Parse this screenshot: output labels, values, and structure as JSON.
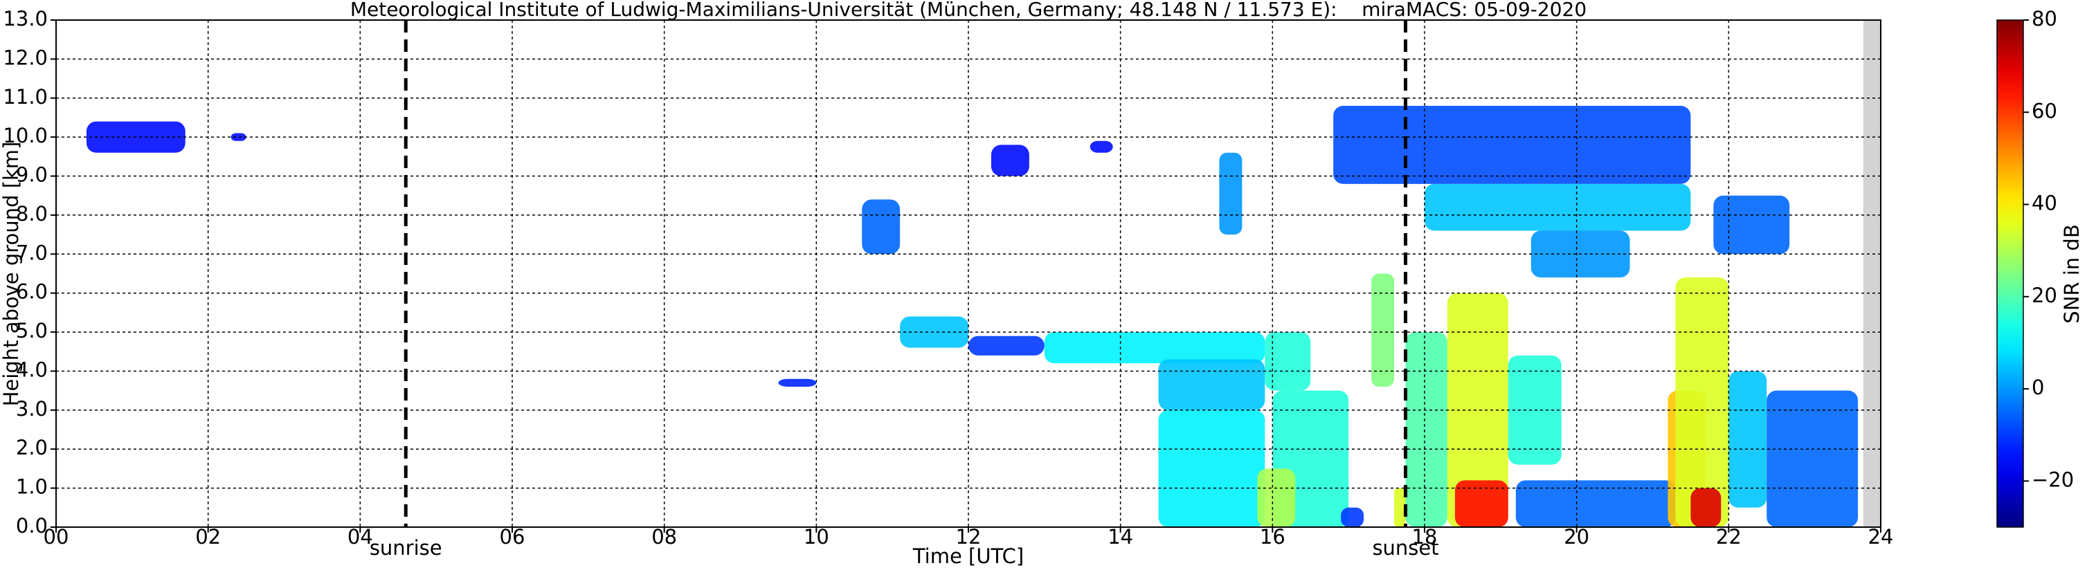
{
  "chart_data": {
    "type": "heatmap",
    "title": "Meteorological Institute of Ludwig-Maximilians-Universität (München, Germany; 48.148 N / 11.573 E):    miraMACS: 05-09-2020",
    "x_label": "Time [UTC]",
    "y_label": "Height above ground [km]",
    "colorbar_label": "SNR in dB",
    "xlim": [
      0,
      24
    ],
    "ylim": [
      0,
      13
    ],
    "clim": [
      -30,
      80
    ],
    "xticks": [
      {
        "value": 0,
        "label": "00"
      },
      {
        "value": 2,
        "label": "02"
      },
      {
        "value": 4,
        "label": "04"
      },
      {
        "value": 6,
        "label": "06"
      },
      {
        "value": 8,
        "label": "08"
      },
      {
        "value": 10,
        "label": "10"
      },
      {
        "value": 12,
        "label": "12"
      },
      {
        "value": 14,
        "label": "14"
      },
      {
        "value": 16,
        "label": "16"
      },
      {
        "value": 18,
        "label": "18"
      },
      {
        "value": 20,
        "label": "20"
      },
      {
        "value": 22,
        "label": "22"
      },
      {
        "value": 24,
        "label": "24"
      }
    ],
    "yticks": [
      {
        "value": 0,
        "label": "0.0"
      },
      {
        "value": 1,
        "label": "1.0"
      },
      {
        "value": 2,
        "label": "2.0"
      },
      {
        "value": 3,
        "label": "3.0"
      },
      {
        "value": 4,
        "label": "4.0"
      },
      {
        "value": 5,
        "label": "5.0"
      },
      {
        "value": 6,
        "label": "6.0"
      },
      {
        "value": 7,
        "label": "7.0"
      },
      {
        "value": 8,
        "label": "8.0"
      },
      {
        "value": 9,
        "label": "9.0"
      },
      {
        "value": 10,
        "label": "10.0"
      },
      {
        "value": 11,
        "label": "11.0"
      },
      {
        "value": 12,
        "label": "12.0"
      },
      {
        "value": 13,
        "label": "13.0"
      }
    ],
    "cticks": [
      {
        "value": -20,
        "label": "−20"
      },
      0,
      20,
      40,
      60,
      80
    ],
    "grid": true,
    "colormap": "jet",
    "no_data": [
      23.77,
      24
    ],
    "events": [
      {
        "text": "sunrise",
        "x": 4.6
      },
      {
        "text": "sunset",
        "x": 17.75
      }
    ],
    "echoes": [
      {
        "time": [
          0.4,
          1.7
        ],
        "height": [
          9.6,
          10.4
        ],
        "snr": -15
      },
      {
        "time": [
          2.3,
          2.5
        ],
        "height": [
          9.9,
          10.1
        ],
        "snr": -15
      },
      {
        "time": [
          9.5,
          10.0
        ],
        "height": [
          3.6,
          3.8
        ],
        "snr": -12
      },
      {
        "time": [
          10.6,
          11.1
        ],
        "height": [
          7.0,
          8.4
        ],
        "snr": -5
      },
      {
        "time": [
          12.3,
          12.8
        ],
        "height": [
          9.0,
          9.8
        ],
        "snr": -15
      },
      {
        "time": [
          13.6,
          13.9
        ],
        "height": [
          9.6,
          9.9
        ],
        "snr": -15
      },
      {
        "time": [
          15.3,
          15.6
        ],
        "height": [
          7.5,
          9.6
        ],
        "snr": 0
      },
      {
        "time": [
          11.1,
          12.0
        ],
        "height": [
          4.6,
          5.4
        ],
        "snr": 5
      },
      {
        "time": [
          12.0,
          13.0
        ],
        "height": [
          4.4,
          4.9
        ],
        "snr": -10
      },
      {
        "time": [
          13.0,
          15.9
        ],
        "height": [
          4.2,
          5.0
        ],
        "snr": 10
      },
      {
        "time": [
          14.5,
          15.9
        ],
        "height": [
          3.0,
          4.3
        ],
        "snr": 5
      },
      {
        "time": [
          14.5,
          15.9
        ],
        "height": [
          0,
          3.0
        ],
        "snr": 10
      },
      {
        "time": [
          15.9,
          16.5
        ],
        "height": [
          3.5,
          5.0
        ],
        "snr": 15
      },
      {
        "time": [
          16.0,
          17.0
        ],
        "height": [
          0,
          3.5
        ],
        "snr": 15
      },
      {
        "time": [
          15.8,
          16.3
        ],
        "height": [
          0,
          1.5
        ],
        "snr": 30
      },
      {
        "time": [
          16.9,
          17.2
        ],
        "height": [
          0,
          0.5
        ],
        "snr": -10
      },
      {
        "time": [
          17.3,
          17.6
        ],
        "height": [
          3.6,
          6.5
        ],
        "snr": 25
      },
      {
        "time": [
          17.6,
          17.75
        ],
        "height": [
          0,
          1.0
        ],
        "snr": 35
      },
      {
        "time": [
          16.8,
          21.5
        ],
        "height": [
          8.8,
          10.8
        ],
        "snr": -8
      },
      {
        "time": [
          18.0,
          21.5
        ],
        "height": [
          7.6,
          8.8
        ],
        "snr": 5
      },
      {
        "time": [
          19.4,
          20.7
        ],
        "height": [
          6.4,
          7.6
        ],
        "snr": 0
      },
      {
        "time": [
          21.8,
          22.8
        ],
        "height": [
          7.0,
          8.5
        ],
        "snr": -5
      },
      {
        "time": [
          17.75,
          18.3
        ],
        "height": [
          0,
          5.0
        ],
        "snr": 20
      },
      {
        "time": [
          18.3,
          19.1
        ],
        "height": [
          0,
          6.0
        ],
        "snr": 35
      },
      {
        "time": [
          18.4,
          19.1
        ],
        "height": [
          0,
          1.2
        ],
        "snr": 65
      },
      {
        "time": [
          19.1,
          19.8
        ],
        "height": [
          1.6,
          4.4
        ],
        "snr": 15
      },
      {
        "time": [
          19.2,
          21.3
        ],
        "height": [
          0,
          1.2
        ],
        "snr": -5
      },
      {
        "time": [
          21.2,
          21.7
        ],
        "height": [
          0,
          3.5
        ],
        "snr": 45
      },
      {
        "time": [
          21.3,
          22.0
        ],
        "height": [
          0,
          6.4
        ],
        "snr": 35
      },
      {
        "time": [
          21.5,
          21.9
        ],
        "height": [
          0,
          1.0
        ],
        "snr": 70
      },
      {
        "time": [
          22.0,
          22.5
        ],
        "height": [
          0.5,
          4.0
        ],
        "snr": 5
      },
      {
        "time": [
          22.5,
          23.7
        ],
        "height": [
          0,
          3.5
        ],
        "snr": -5
      }
    ]
  }
}
